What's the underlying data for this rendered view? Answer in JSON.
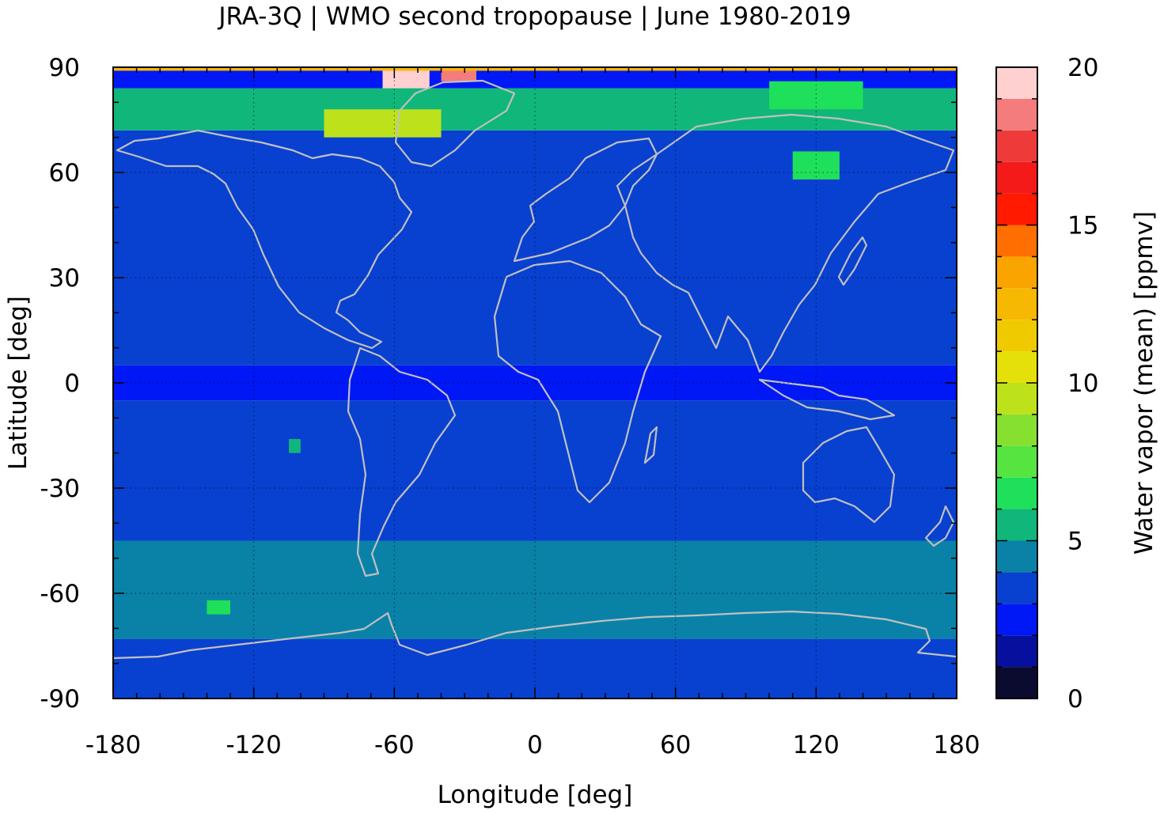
{
  "chart_data": {
    "type": "heatmap",
    "title": "JRA-3Q | WMO second tropopause | June 1980-2019",
    "xlabel": "Longitude [deg]",
    "ylabel": "Latitude [deg]",
    "colorbar_label": "Water vapor (mean) [ppmv]",
    "xlim": [
      -180,
      180
    ],
    "ylim": [
      -90,
      90
    ],
    "x_ticks": [
      "-180",
      "-120",
      "-60",
      "0",
      "60",
      "120",
      "180"
    ],
    "x_tick_values": [
      -180,
      -120,
      -60,
      0,
      60,
      120,
      180
    ],
    "y_ticks": [
      "90",
      "60",
      "30",
      "0",
      "-30",
      "-60",
      "-90"
    ],
    "y_tick_values": [
      90,
      60,
      30,
      0,
      -30,
      -60,
      -90
    ],
    "colorbar_ticks": [
      "20",
      "15",
      "10",
      "5",
      "0"
    ],
    "colorbar_tick_values": [
      20,
      15,
      10,
      5,
      0
    ],
    "colorbar_range": [
      0,
      20
    ],
    "grid": true,
    "coastlines_color": "#c0c0c0",
    "colorbar_levels": [
      {
        "from": 0,
        "to": 1,
        "color": "#0b0b30"
      },
      {
        "from": 1,
        "to": 2,
        "color": "#07109e"
      },
      {
        "from": 2,
        "to": 3,
        "color": "#0018f5"
      },
      {
        "from": 3,
        "to": 4,
        "color": "#0840d0"
      },
      {
        "from": 4,
        "to": 5,
        "color": "#0a82a8"
      },
      {
        "from": 5,
        "to": 6,
        "color": "#10b67a"
      },
      {
        "from": 6,
        "to": 7,
        "color": "#1fe05a"
      },
      {
        "from": 7,
        "to": 8,
        "color": "#55e440"
      },
      {
        "from": 8,
        "to": 9,
        "color": "#85e030"
      },
      {
        "from": 9,
        "to": 10,
        "color": "#bde21c"
      },
      {
        "from": 10,
        "to": 11,
        "color": "#e6e00a"
      },
      {
        "from": 11,
        "to": 12,
        "color": "#f0ca00"
      },
      {
        "from": 12,
        "to": 13,
        "color": "#f6b800"
      },
      {
        "from": 13,
        "to": 14,
        "color": "#faa400"
      },
      {
        "from": 14,
        "to": 15,
        "color": "#fe6e00"
      },
      {
        "from": 15,
        "to": 16,
        "color": "#ff1a00"
      },
      {
        "from": 16,
        "to": 17,
        "color": "#f41a1a"
      },
      {
        "from": 17,
        "to": 18,
        "color": "#ef3a3a"
      },
      {
        "from": 18,
        "to": 19,
        "color": "#f47c7c"
      },
      {
        "from": 19,
        "to": 20,
        "color": "#ffd0d0"
      }
    ],
    "field_summary": [
      {
        "lat_from": -90,
        "lat_to": -73,
        "value": 3.5
      },
      {
        "lat_from": -73,
        "lat_to": -45,
        "value": 4.5
      },
      {
        "lat_from": -45,
        "lat_to": -5,
        "value": 3.5
      },
      {
        "lat_from": -5,
        "lat_to": 5,
        "value": 2.7
      },
      {
        "lat_from": 5,
        "lat_to": 72,
        "value": 3.5
      },
      {
        "lat_from": 72,
        "lat_to": 84,
        "value": 5.5
      },
      {
        "lat_from": 84,
        "lat_to": 90,
        "value": 2.5
      }
    ],
    "features": [
      {
        "lon_from": -65,
        "lon_to": -45,
        "lat_from": 84,
        "lat_to": 90,
        "value": 19.5
      },
      {
        "lon_from": -40,
        "lon_to": -25,
        "lat_from": 86,
        "lat_to": 90,
        "value": 18
      },
      {
        "lon_from": -180,
        "lon_to": 180,
        "lat_from": 89,
        "lat_to": 90,
        "value": 12
      },
      {
        "lon_from": -90,
        "lon_to": -40,
        "lat_from": 70,
        "lat_to": 78,
        "value": 9
      },
      {
        "lon_from": 100,
        "lon_to": 140,
        "lat_from": 78,
        "lat_to": 86,
        "value": 6
      },
      {
        "lon_from": 110,
        "lon_to": 130,
        "lat_from": 58,
        "lat_to": 66,
        "value": 6
      },
      {
        "lon_from": -105,
        "lon_to": -100,
        "lat_from": -20,
        "lat_to": -16,
        "value": 5.5
      },
      {
        "lon_from": -140,
        "lon_to": -130,
        "lat_from": -66,
        "lat_to": -62,
        "value": 6
      }
    ]
  }
}
